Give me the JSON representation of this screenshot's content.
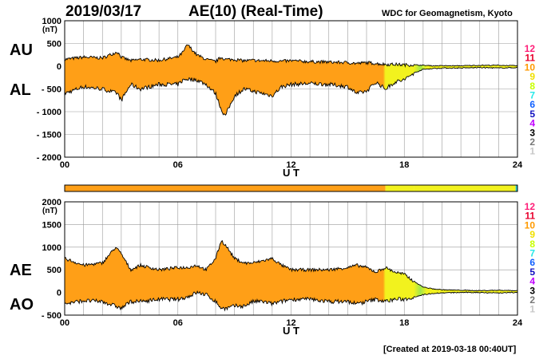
{
  "header": {
    "date": "2019/03/17",
    "title": "AE(10) (Real-Time)",
    "source": "WDC for Geomagnetism, Kyoto"
  },
  "footer": {
    "created": "[Created at 2019-03-18 00:40UT]"
  },
  "legend": {
    "numbers": [
      "12",
      "11",
      "10",
      "9",
      "8",
      "7",
      "6",
      "5",
      "4",
      "3",
      "2",
      "1"
    ],
    "colors": [
      "#ff1e78",
      "#e8002c",
      "#ff9a00",
      "#f0e000",
      "#c8ff00",
      "#28e8e8",
      "#1060ff",
      "#1010c0",
      "#c000ff",
      "#000000",
      "#787878",
      "#c8c8c8"
    ]
  },
  "colors": {
    "fill_main": "#ff9f17",
    "fill_late": "#f2f21e",
    "fill_green": "#a2e84a",
    "grid": "#9a9a9a",
    "trace": "#000000"
  },
  "chart_data": [
    {
      "type": "area",
      "name": "AU/AL panel",
      "series_labels": [
        "AU",
        "AL"
      ],
      "xlabel": "U T",
      "ylabel_unit": "(nT)",
      "xlim": [
        0,
        24
      ],
      "ylim": [
        -2000,
        1000
      ],
      "xticks": [
        0,
        6,
        12,
        18,
        24
      ],
      "xtick_labels": [
        "00",
        "06",
        "12",
        "18",
        "24"
      ],
      "yticks": [
        1000,
        500,
        0,
        -500,
        -1000,
        -1500,
        -2000
      ],
      "ytick_labels": [
        "1000",
        "500",
        "0",
        "- 500",
        "- 1000",
        "- 1500",
        "- 2000"
      ],
      "grid": true,
      "x": [
        0,
        1,
        2,
        2.8,
        3,
        3.5,
        4,
        5,
        6,
        6.3,
        6.5,
        7,
        7.5,
        8,
        8.3,
        8.5,
        9,
        9.5,
        10,
        10.5,
        11,
        11.5,
        12,
        13,
        14,
        15,
        15.5,
        16,
        16.5,
        17,
        17.5,
        18,
        18.5,
        19,
        19.5,
        20,
        21,
        22,
        23,
        24
      ],
      "upper": [
        150,
        200,
        180,
        320,
        200,
        120,
        150,
        130,
        200,
        320,
        480,
        250,
        150,
        100,
        200,
        150,
        150,
        120,
        130,
        120,
        120,
        110,
        120,
        100,
        90,
        80,
        60,
        80,
        60,
        40,
        40,
        30,
        30,
        20,
        10,
        10,
        10,
        20,
        20,
        10
      ],
      "lower": [
        -600,
        -450,
        -500,
        -600,
        -750,
        -400,
        -500,
        -400,
        -400,
        -300,
        -280,
        -300,
        -400,
        -600,
        -950,
        -1100,
        -650,
        -500,
        -550,
        -600,
        -650,
        -450,
        -400,
        -380,
        -400,
        -450,
        -600,
        -550,
        -350,
        -500,
        -350,
        -300,
        -150,
        -70,
        -50,
        -40,
        -40,
        -30,
        -40,
        -30
      ]
    },
    {
      "type": "area",
      "name": "AE/AO panel",
      "series_labels": [
        "AE",
        "AO"
      ],
      "xlabel": "U T",
      "ylabel_unit": "(nT)",
      "xlim": [
        0,
        24
      ],
      "ylim": [
        -500,
        2000
      ],
      "xticks": [
        0,
        6,
        12,
        18,
        24
      ],
      "xtick_labels": [
        "00",
        "06",
        "12",
        "18",
        "24"
      ],
      "yticks": [
        2000,
        1500,
        1000,
        500,
        0,
        -500
      ],
      "ytick_labels": [
        "2000",
        "1500",
        "1000",
        "500",
        "0",
        "- 500"
      ],
      "grid": true,
      "x": [
        0,
        1,
        2,
        2.7,
        3,
        3.5,
        4,
        5,
        6,
        6.5,
        7,
        7.5,
        8,
        8.3,
        8.6,
        9,
        9.5,
        10,
        10.5,
        11,
        11.5,
        12,
        13,
        14,
        15,
        15.5,
        16,
        16.5,
        17,
        17.5,
        18,
        18.5,
        19,
        19.5,
        20,
        21,
        22,
        23,
        24
      ],
      "upper": [
        750,
        600,
        650,
        1000,
        850,
        500,
        600,
        500,
        550,
        550,
        600,
        500,
        750,
        1150,
        1000,
        750,
        650,
        650,
        700,
        750,
        600,
        500,
        500,
        500,
        550,
        600,
        550,
        450,
        550,
        450,
        400,
        250,
        120,
        80,
        60,
        50,
        40,
        50,
        40
      ],
      "lower": [
        -250,
        -180,
        -200,
        -300,
        -350,
        -200,
        -200,
        -150,
        -150,
        -100,
        0,
        -50,
        -200,
        -350,
        -350,
        -300,
        -300,
        -200,
        -200,
        -250,
        -200,
        -150,
        -150,
        -200,
        -200,
        -250,
        -200,
        -150,
        -200,
        -150,
        -150,
        -100,
        -50,
        -20,
        -10,
        0,
        0,
        -10,
        0
      ]
    }
  ],
  "bar_strip": {
    "name": "activity color strip",
    "segments": [
      {
        "from": 0,
        "to": 17,
        "color": "#ff9f17"
      },
      {
        "from": 17,
        "to": 18.5,
        "color": "#f2f21e"
      },
      {
        "from": 18.5,
        "to": 23.9,
        "color": "#f2f21e"
      },
      {
        "from": 23.9,
        "to": 24,
        "color": "#28c8c8"
      }
    ]
  }
}
